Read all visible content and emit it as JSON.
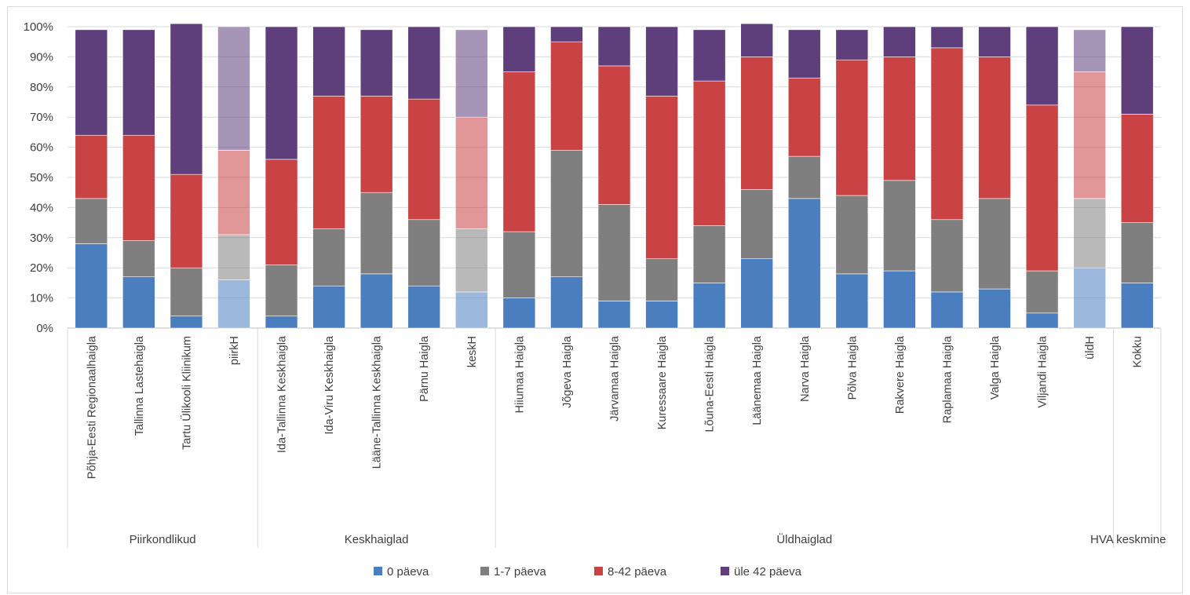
{
  "chart_data": {
    "type": "bar",
    "stacked": true,
    "stack_mode": "percent",
    "ylim": [
      0,
      100
    ],
    "y_ticks": [
      0,
      10,
      20,
      30,
      40,
      50,
      60,
      70,
      80,
      90,
      100
    ],
    "y_tick_suffix": "%",
    "grid": true,
    "legend_position": "bottom",
    "categories": [
      "Põhja-Eesti Regionaalhaigla",
      "Tallinna Lastehaigla",
      "Tartu Ülikooli Kliinikum",
      "piirkH",
      "Ida-Tallinna Keskhaigla",
      "Ida-Viru Keskhaigla",
      "Lääne-Tallinna Keskhaigla",
      "Pärnu Haigla",
      "keskH",
      "Hiiumaa Haigla",
      "Jõgeva Haigla",
      "Järvamaa Haigla",
      "Kuressaare Haigla",
      "Lõuna-Eesti Haigla",
      "Läänemaa Haigla",
      "Narva Haigla",
      "Põlva Haigla",
      "Rakvere Haigla",
      "Raplamaa Haigla",
      "Valga Haigla",
      "Viljandi Haigla",
      "üldH",
      "Kokku"
    ],
    "faded_categories": [
      "piirkH",
      "keskH",
      "üldH"
    ],
    "groups": [
      {
        "label": "Piirkondlikud",
        "count": 4
      },
      {
        "label": "Keskhaiglad",
        "count": 5
      },
      {
        "label": "Üldhaiglad",
        "count": 13
      },
      {
        "label": "HVA keskmine",
        "count": 1
      }
    ],
    "series": [
      {
        "name": "0 päeva",
        "color": "#4a7ebf",
        "values": [
          28,
          17,
          4,
          16,
          4,
          14,
          18,
          14,
          12,
          10,
          17,
          9,
          9,
          15,
          23,
          43,
          18,
          19,
          12,
          13,
          5,
          20,
          15
        ]
      },
      {
        "name": "1-7 päeva",
        "color": "#7f7f7f",
        "values": [
          15,
          12,
          16,
          15,
          17,
          19,
          27,
          22,
          21,
          22,
          42,
          32,
          14,
          19,
          23,
          14,
          26,
          30,
          24,
          30,
          14,
          23,
          20
        ]
      },
      {
        "name": "8-42 päeva",
        "color": "#c94244",
        "values": [
          21,
          35,
          31,
          28,
          35,
          44,
          32,
          40,
          37,
          53,
          36,
          46,
          54,
          48,
          44,
          26,
          45,
          41,
          57,
          47,
          55,
          42,
          36
        ]
      },
      {
        "name": "üle 42 päeva",
        "color": "#5e3e7b",
        "values": [
          35,
          35,
          50,
          41,
          44,
          23,
          22,
          24,
          29,
          15,
          5,
          13,
          23,
          17,
          11,
          16,
          10,
          10,
          7,
          10,
          26,
          14,
          29
        ]
      }
    ]
  }
}
